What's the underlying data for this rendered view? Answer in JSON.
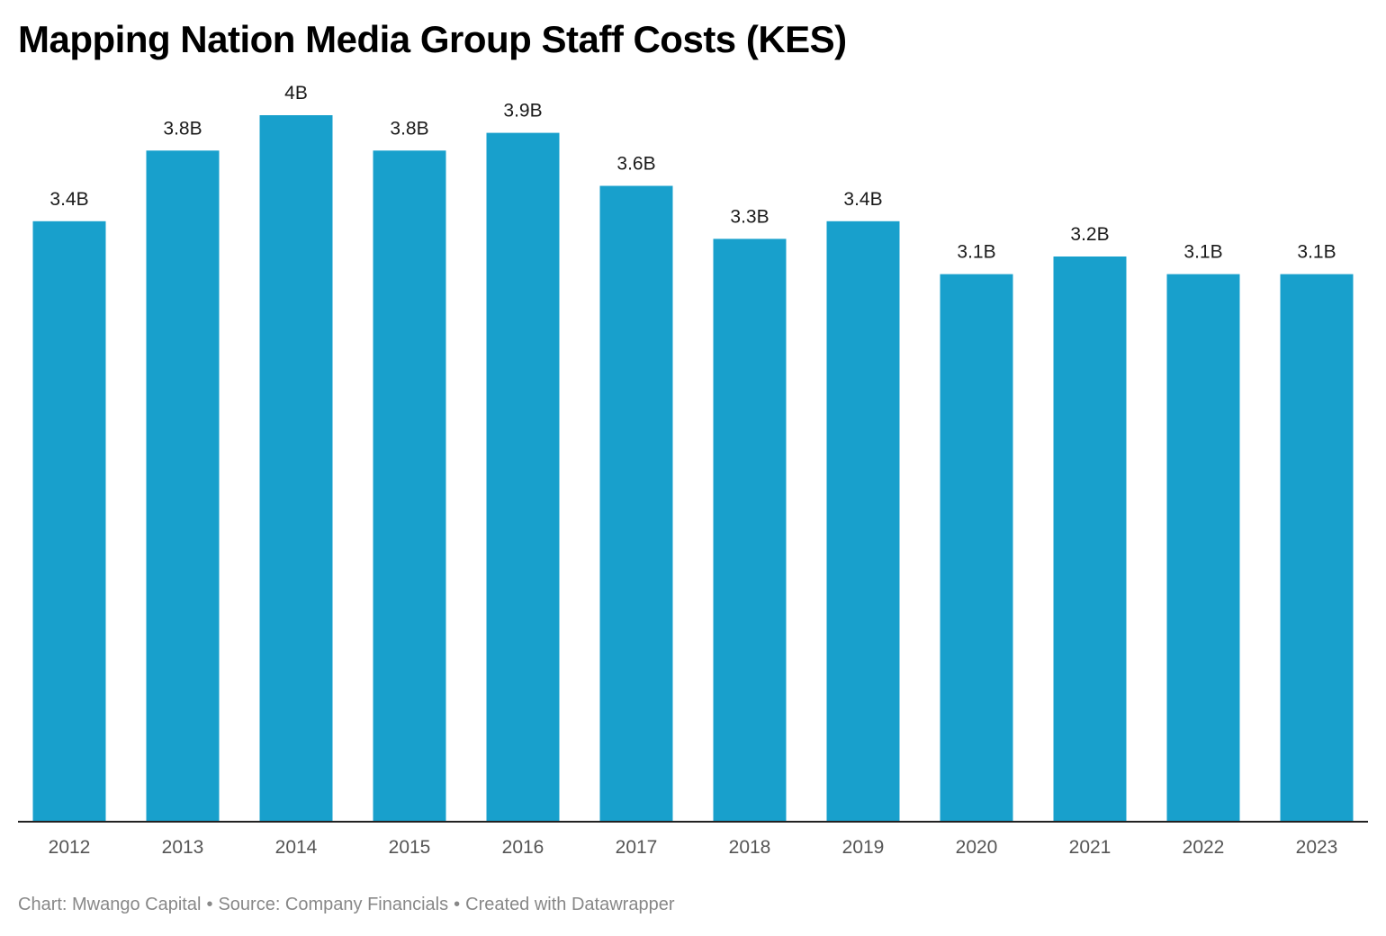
{
  "colors": {
    "bar": "#18a0cc",
    "baseline": "#222222",
    "title": "#000000",
    "footer": "#888888"
  },
  "chart_data": {
    "type": "bar",
    "title": "Mapping Nation Media Group Staff Costs (KES)",
    "categories": [
      "2012",
      "2013",
      "2014",
      "2015",
      "2016",
      "2017",
      "2018",
      "2019",
      "2020",
      "2021",
      "2022",
      "2023"
    ],
    "values": [
      3.4,
      3.8,
      4.0,
      3.8,
      3.9,
      3.6,
      3.3,
      3.4,
      3.1,
      3.2,
      3.1,
      3.1
    ],
    "value_labels": [
      "3.4B",
      "3.8B",
      "4B",
      "3.8B",
      "3.9B",
      "3.6B",
      "3.3B",
      "3.4B",
      "3.1B",
      "3.2B",
      "3.1B",
      "3.1B"
    ],
    "xlabel": "",
    "ylabel": "",
    "ylim": [
      0,
      4
    ],
    "grid": false,
    "legend": "none"
  },
  "footer": {
    "chart_credit": "Chart: Mwango Capital",
    "source": "Source: Company Financials",
    "tool": "Created with Datawrapper",
    "separator": "•"
  }
}
